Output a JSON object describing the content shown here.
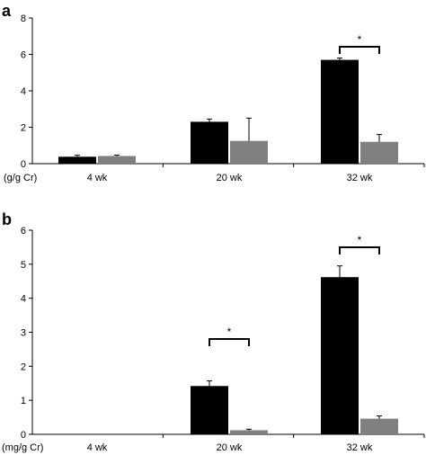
{
  "chart_data": [
    {
      "type": "bar",
      "panel_label": "a",
      "unit_label": "(g/g Cr)",
      "categories": [
        "4 wk",
        "20 wk",
        "32 wk"
      ],
      "yticks": [
        "0",
        "2",
        "4",
        "6",
        "8"
      ],
      "ylim": [
        0,
        8
      ],
      "grid": false,
      "series": [
        {
          "color": "#000000",
          "values": [
            0.38,
            2.3,
            5.7
          ],
          "errors": [
            0.08,
            0.15,
            0.1
          ]
        },
        {
          "color": "#808080",
          "values": [
            0.42,
            1.25,
            1.2
          ],
          "errors": [
            0.05,
            1.25,
            0.4
          ]
        }
      ],
      "significance": [
        {
          "category": 2,
          "label": "*"
        }
      ]
    },
    {
      "type": "bar",
      "panel_label": "b",
      "unit_label": "(mg/g Cr)",
      "categories": [
        "4 wk",
        "20 wk",
        "32 wk"
      ],
      "yticks": [
        "0",
        "1",
        "2",
        "3",
        "4",
        "5",
        "6"
      ],
      "ylim": [
        0,
        6
      ],
      "grid": false,
      "series": [
        {
          "color": "#000000",
          "values": [
            0,
            1.42,
            4.62
          ],
          "errors": [
            0,
            0.15,
            0.33
          ]
        },
        {
          "color": "#808080",
          "values": [
            0,
            0.12,
            0.46
          ],
          "errors": [
            0,
            0.03,
            0.08
          ]
        }
      ],
      "significance": [
        {
          "category": 1,
          "label": "*"
        },
        {
          "category": 2,
          "label": "*"
        }
      ]
    }
  ]
}
